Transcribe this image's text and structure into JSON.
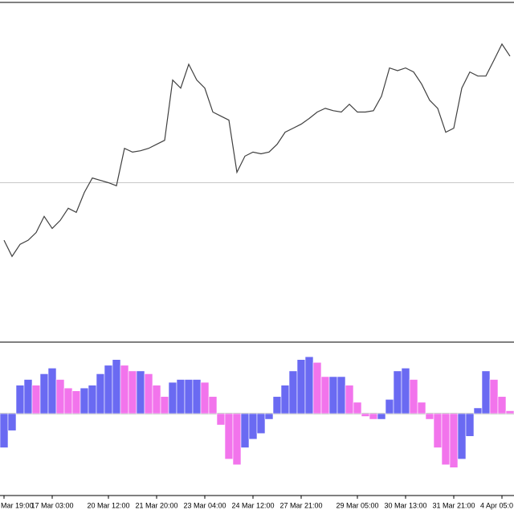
{
  "chart_data": [
    {
      "type": "line",
      "color": "#404040",
      "values": [
        29.8,
        25,
        28.6,
        29.8,
        32.1,
        36.9,
        33.3,
        35.7,
        39.3,
        38.1,
        44,
        48.3,
        47.6,
        46.9,
        46,
        57.1,
        56,
        56.4,
        57.1,
        58.3,
        59.5,
        77.4,
        75,
        82.1,
        77.4,
        75,
        67.9,
        66.7,
        65.5,
        50,
        54.8,
        56,
        55.5,
        56,
        58.3,
        61.9,
        63.1,
        64.3,
        66,
        67.9,
        69,
        68.3,
        67.9,
        70.2,
        67.9,
        67.9,
        68.3,
        72.6,
        81,
        80.2,
        81,
        79.8,
        76.2,
        71.4,
        69,
        61.9,
        63.1,
        75,
        79.8,
        78.6,
        78.6,
        83.3,
        88.1,
        84.5
      ],
      "level": 46.9,
      "level_color": "#c8c8c8",
      "ylim": [
        0,
        100
      ]
    },
    {
      "type": "bar",
      "up_color": "#6a6af2",
      "down_color": "#f274ec",
      "values": [
        -0.6,
        -0.3,
        0.5,
        0.6,
        0.5,
        0.7,
        0.8,
        0.6,
        0.45,
        0.4,
        0.45,
        0.5,
        0.7,
        0.85,
        0.95,
        0.85,
        0.75,
        0.75,
        0.7,
        0.5,
        0.3,
        0.55,
        0.6,
        0.6,
        0.6,
        0.55,
        0.3,
        -0.2,
        -0.8,
        -0.9,
        -0.6,
        -0.45,
        -0.35,
        -0.1,
        0.3,
        0.5,
        0.75,
        0.95,
        1.0,
        0.9,
        0.65,
        0.65,
        0.65,
        0.5,
        0.2,
        -0.05,
        -0.1,
        -0.1,
        0.25,
        0.75,
        0.8,
        0.6,
        0.2,
        -0.1,
        -0.6,
        -0.9,
        -0.95,
        -0.8,
        -0.4,
        0.1,
        0.75,
        0.6,
        0.3,
        0.05
      ],
      "categories": [
        "Mar 19:00",
        null,
        null,
        null,
        null,
        null,
        "17 Mar 03:00",
        null,
        null,
        null,
        null,
        null,
        null,
        "20 Mar 12:00",
        null,
        null,
        null,
        null,
        null,
        "21 Mar 20:00",
        null,
        null,
        null,
        null,
        null,
        "23 Mar 04:00",
        null,
        null,
        null,
        null,
        null,
        "24 Mar 12:00",
        null,
        null,
        null,
        null,
        null,
        "27 Mar 21:00",
        null,
        null,
        null,
        null,
        null,
        null,
        "29 Mar 05:00",
        null,
        null,
        null,
        null,
        null,
        "30 Mar 13:00",
        null,
        null,
        null,
        null,
        null,
        "31 Mar 21:00",
        null,
        null,
        null,
        null,
        null,
        "4 Apr 05:0",
        null
      ],
      "ylim": [
        -1.2,
        1.2
      ]
    }
  ]
}
